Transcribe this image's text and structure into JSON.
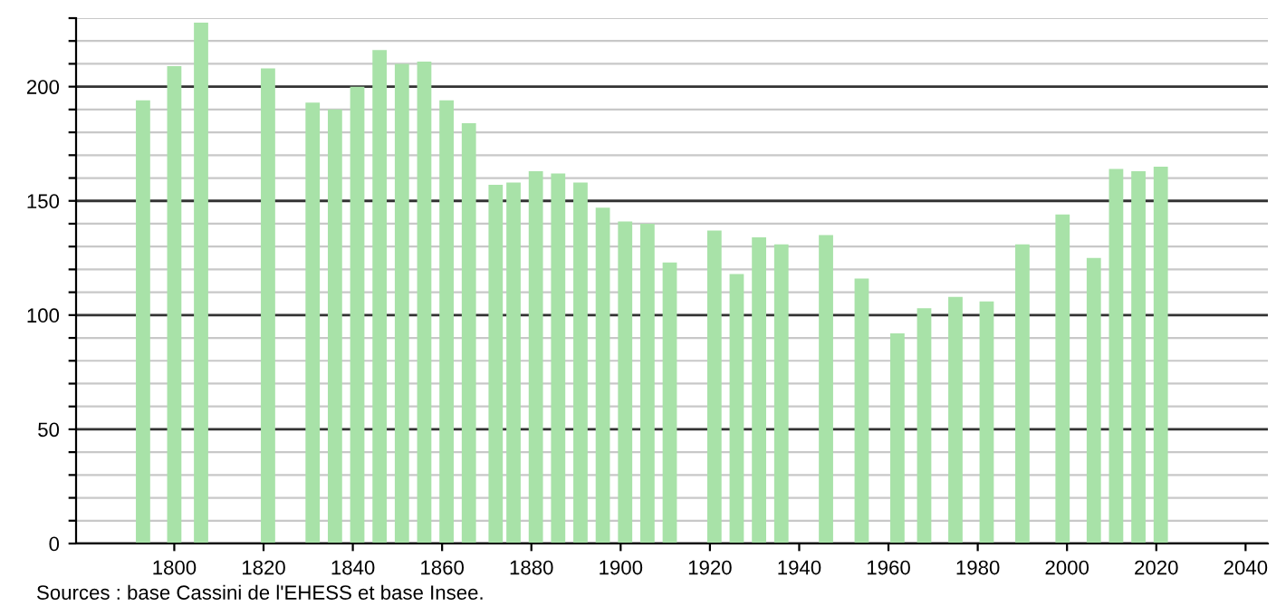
{
  "chart_data": {
    "type": "bar",
    "x": [
      1793,
      1800,
      1806,
      1821,
      1831,
      1836,
      1841,
      1846,
      1851,
      1856,
      1861,
      1866,
      1872,
      1876,
      1881,
      1886,
      1891,
      1896,
      1901,
      1906,
      1911,
      1921,
      1926,
      1931,
      1936,
      1946,
      1954,
      1962,
      1968,
      1975,
      1982,
      1990,
      1999,
      2006,
      2011,
      2016,
      2021
    ],
    "values": [
      194,
      209,
      228,
      208,
      193,
      190,
      200,
      216,
      210,
      211,
      194,
      184,
      157,
      158,
      163,
      162,
      158,
      147,
      141,
      140,
      123,
      137,
      118,
      134,
      131,
      135,
      116,
      92,
      103,
      108,
      106,
      131,
      144,
      125,
      164,
      163,
      165
    ],
    "color": "#a8e2a8",
    "xlim": [
      1778,
      2045
    ],
    "xticks": [
      1800,
      1820,
      1840,
      1860,
      1880,
      1900,
      1920,
      1940,
      1960,
      1980,
      2000,
      2020,
      2040
    ],
    "ylim": [
      0,
      230
    ],
    "yticks": [
      0,
      {
        "value": 10,
        "label": null
      },
      {
        "value": 20,
        "label": null
      },
      {
        "value": 30,
        "label": null
      },
      {
        "value": 40,
        "label": null
      },
      50,
      {
        "value": 60,
        "label": null
      },
      {
        "value": 70,
        "label": null
      },
      {
        "value": 80,
        "label": null
      },
      {
        "value": 90,
        "label": null
      },
      100,
      {
        "value": 110,
        "label": null
      },
      {
        "value": 120,
        "label": null
      },
      {
        "value": 130,
        "label": null
      },
      {
        "value": 140,
        "label": null
      },
      150,
      {
        "value": 160,
        "label": null
      },
      {
        "value": 170,
        "label": null
      },
      {
        "value": 180,
        "label": null
      },
      {
        "value": 190,
        "label": null
      },
      200,
      {
        "value": 210,
        "label": null
      },
      {
        "value": 220,
        "label": null
      },
      {
        "value": 230,
        "label": null
      }
    ],
    "grid": "y",
    "annotations": [
      "Sources : base Cassini de l'EHESS et base Insee."
    ]
  }
}
